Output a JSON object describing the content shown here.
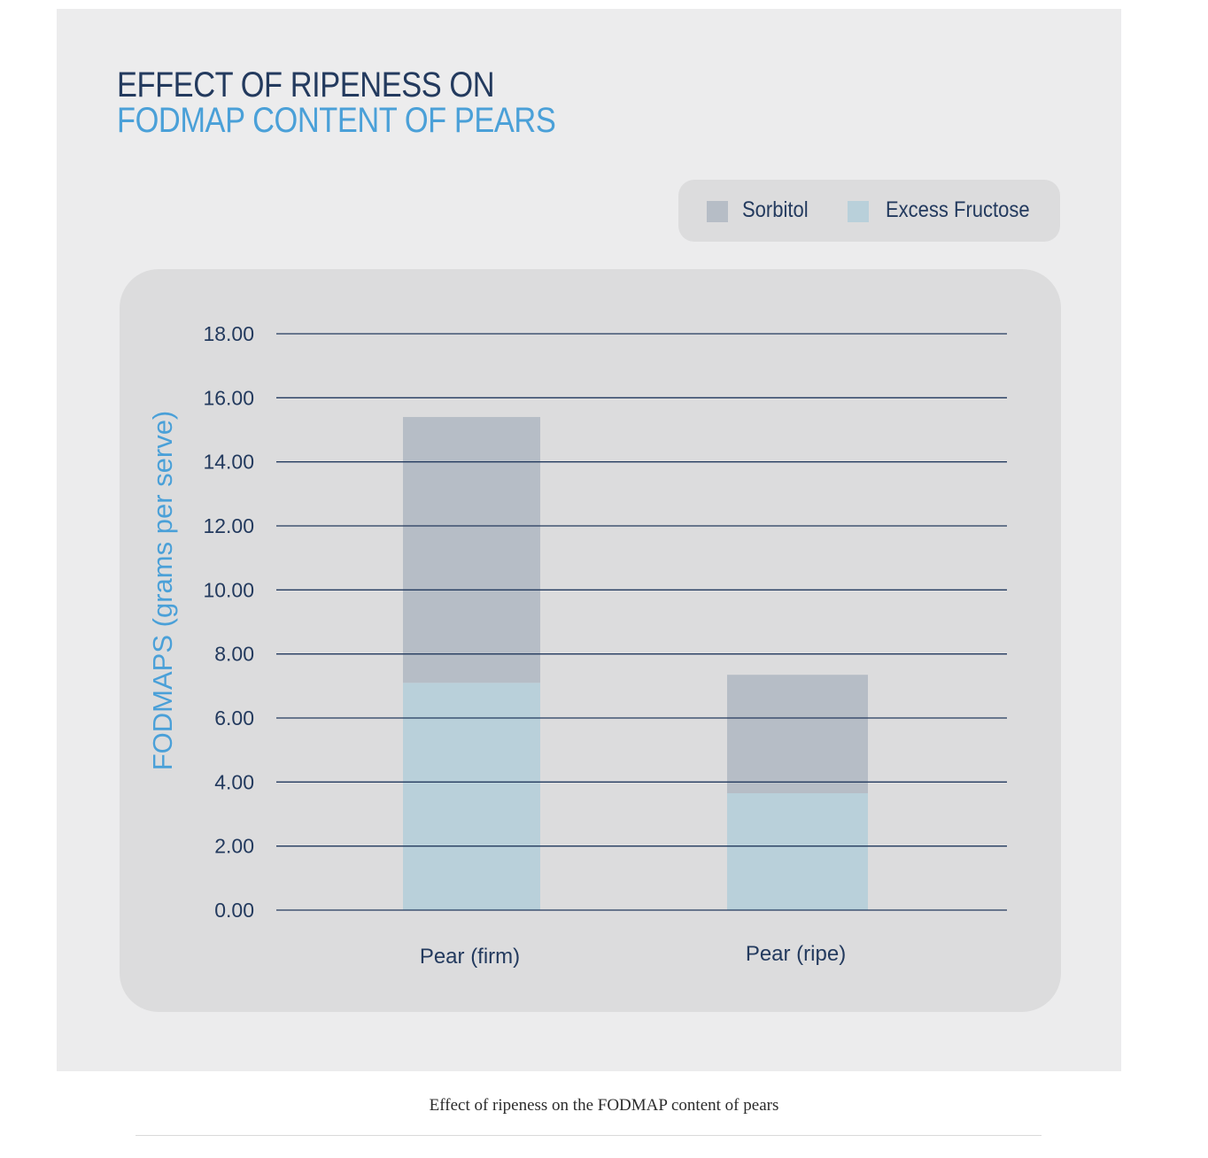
{
  "colors": {
    "sorbitol": "#b6bdc6",
    "excess_fructose": "#b9d0da",
    "gridline": "#233a5e",
    "tick_text": "#233a5e",
    "title_dark": "#233a5e",
    "title_blue": "#4aa0d8"
  },
  "chart_data": {
    "type": "bar",
    "stacked": true,
    "title_line1": "EFFECT OF RIPENESS ON",
    "title_line2": "FODMAP CONTENT OF PEARS",
    "ylabel": "FODMAPS (grams per serve)",
    "xlabel": "",
    "categories": [
      "Pear (firm)",
      "Pear (ripe)"
    ],
    "series": [
      {
        "name": "Excess Fructose",
        "values": [
          7.1,
          3.65
        ]
      },
      {
        "name": "Sorbitol",
        "values": [
          8.3,
          3.7
        ]
      }
    ],
    "ylim": [
      0,
      18
    ],
    "yticks": [
      "0.00",
      "2.00",
      "4.00",
      "6.00",
      "8.00",
      "10.00",
      "12.00",
      "14.00",
      "16.00",
      "18.00"
    ],
    "grid": true,
    "legend": {
      "placement": "top-right",
      "items": [
        {
          "label": "Sorbitol",
          "color": "#b6bdc6"
        },
        {
          "label": "Excess Fructose",
          "color": "#b9d0da"
        }
      ]
    }
  },
  "caption": "Effect of ripeness on the FODMAP content of pears"
}
